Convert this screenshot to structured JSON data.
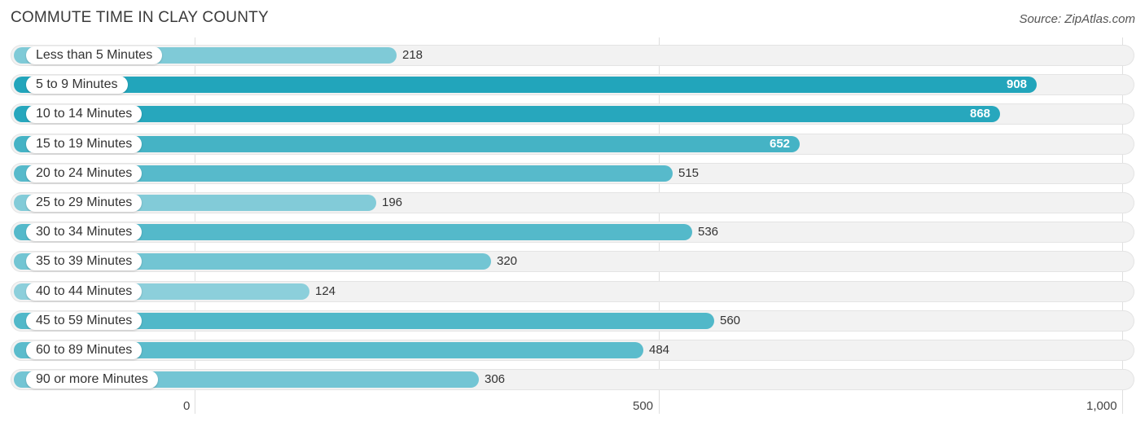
{
  "chart_data": {
    "type": "bar",
    "orientation": "horizontal",
    "title": "COMMUTE TIME IN CLAY COUNTY",
    "source": "Source: ZipAtlas.com",
    "categories": [
      "Less than 5 Minutes",
      "5 to 9 Minutes",
      "10 to 14 Minutes",
      "15 to 19 Minutes",
      "20 to 24 Minutes",
      "25 to 29 Minutes",
      "30 to 34 Minutes",
      "35 to 39 Minutes",
      "40 to 44 Minutes",
      "45 to 59 Minutes",
      "60 to 89 Minutes",
      "90 or more Minutes"
    ],
    "values": [
      218,
      908,
      868,
      652,
      515,
      196,
      536,
      320,
      124,
      560,
      484,
      306
    ],
    "value_labels": [
      "218",
      "908",
      "868",
      "652",
      "515",
      "196",
      "536",
      "320",
      "124",
      "560",
      "484",
      "306"
    ],
    "xticks": [
      0,
      500,
      1000
    ],
    "xtick_labels": [
      "0",
      "500",
      "1,000"
    ],
    "xlim": [
      0,
      1000
    ],
    "xlabel": "",
    "ylabel": "",
    "grid": true,
    "colors": {
      "light": "#8ccfdb",
      "dark": "#22a5bb"
    }
  }
}
